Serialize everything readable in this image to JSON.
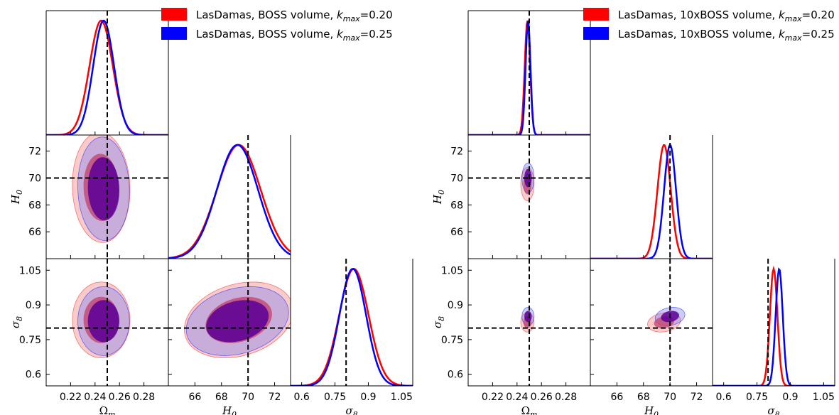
{
  "chart_data": [
    {
      "type": "triangle-corner-plot",
      "parameters": [
        {
          "key": "om",
          "label": "Ω",
          "sub": "m",
          "range": [
            0.2,
            0.3
          ],
          "ticks": [
            "0.22",
            "0.24",
            "0.26",
            "0.28"
          ],
          "tick_values": [
            0.22,
            0.24,
            0.26,
            0.28
          ],
          "fiducial": 0.25
        },
        {
          "key": "h0",
          "label": "H",
          "sub": "0",
          "range": [
            64.0,
            73.2
          ],
          "ticks": [
            "66",
            "68",
            "70",
            "72"
          ],
          "tick_values": [
            66,
            68,
            70,
            72
          ],
          "fiducial": 70.0
        },
        {
          "key": "s8",
          "label": "σ",
          "sub": "8",
          "range": [
            0.55,
            1.1
          ],
          "ticks": [
            "0.6",
            "0.75",
            "0.9",
            "1.05"
          ],
          "tick_values": [
            0.6,
            0.75,
            0.9,
            1.05
          ],
          "fiducial": 0.8
        }
      ],
      "series": [
        {
          "name_pre": "LasDamas, BOSS volume, ",
          "name_k": "k",
          "name_sub": "max",
          "name_post": "=0.20",
          "color": "#ff0000",
          "fill": "#f08080",
          "mean": {
            "om": 0.245,
            "h0": 69.3,
            "s8": 0.835
          },
          "sigma": {
            "om": 0.0095,
            "h0": 1.65,
            "s8": 0.066
          },
          "corr": {
            "om_h0": -0.05,
            "om_s8": 0.0,
            "h0_s8": 0.25
          }
        },
        {
          "name_pre": "LasDamas, BOSS volume, ",
          "name_k": "k",
          "name_sub": "max",
          "name_post": "=0.25",
          "color": "#0000ff",
          "fill": "#8080f0",
          "mean": {
            "om": 0.247,
            "h0": 69.2,
            "s8": 0.83
          },
          "sigma": {
            "om": 0.0085,
            "h0": 1.55,
            "s8": 0.06
          },
          "corr": {
            "om_h0": -0.05,
            "om_s8": 0.0,
            "h0_s8": 0.25
          }
        }
      ]
    },
    {
      "type": "triangle-corner-plot",
      "parameters": [
        {
          "key": "om",
          "label": "Ω",
          "sub": "m",
          "range": [
            0.2,
            0.3
          ],
          "ticks": [
            "0.22",
            "0.24",
            "0.26",
            "0.28"
          ],
          "tick_values": [
            0.22,
            0.24,
            0.26,
            0.28
          ],
          "fiducial": 0.25
        },
        {
          "key": "h0",
          "label": "H",
          "sub": "0",
          "range": [
            64.0,
            73.2
          ],
          "ticks": [
            "66",
            "68",
            "70",
            "72"
          ],
          "tick_values": [
            66,
            68,
            70,
            72
          ],
          "fiducial": 70.0
        },
        {
          "key": "s8",
          "label": "σ",
          "sub": "8",
          "range": [
            0.55,
            1.1
          ],
          "ticks": [
            "0.6",
            "0.75",
            "0.9",
            "1.05"
          ],
          "tick_values": [
            0.6,
            0.75,
            0.9,
            1.05
          ],
          "fiducial": 0.8
        }
      ],
      "series": [
        {
          "name_pre": "LasDamas, 10xBOSS volume, ",
          "name_k": "k",
          "name_sub": "max",
          "name_post": "=0.20",
          "color": "#ff0000",
          "fill": "#f08080",
          "mean": {
            "om": 0.2485,
            "h0": 69.55,
            "s8": 0.825
          },
          "sigma": {
            "om": 0.0022,
            "h0": 0.5,
            "s8": 0.017
          },
          "corr": {
            "om_h0": 0.0,
            "om_s8": 0.0,
            "h0_s8": 0.2
          }
        },
        {
          "name_pre": "LasDamas, 10xBOSS volume, ",
          "name_k": "k",
          "name_sub": "max",
          "name_post": "=0.25",
          "color": "#0000ff",
          "fill": "#8080f0",
          "mean": {
            "om": 0.249,
            "h0": 70.0,
            "s8": 0.85
          },
          "sigma": {
            "om": 0.002,
            "h0": 0.45,
            "s8": 0.016
          },
          "corr": {
            "om_h0": 0.0,
            "om_s8": 0.0,
            "h0_s8": 0.2
          }
        }
      ]
    }
  ]
}
